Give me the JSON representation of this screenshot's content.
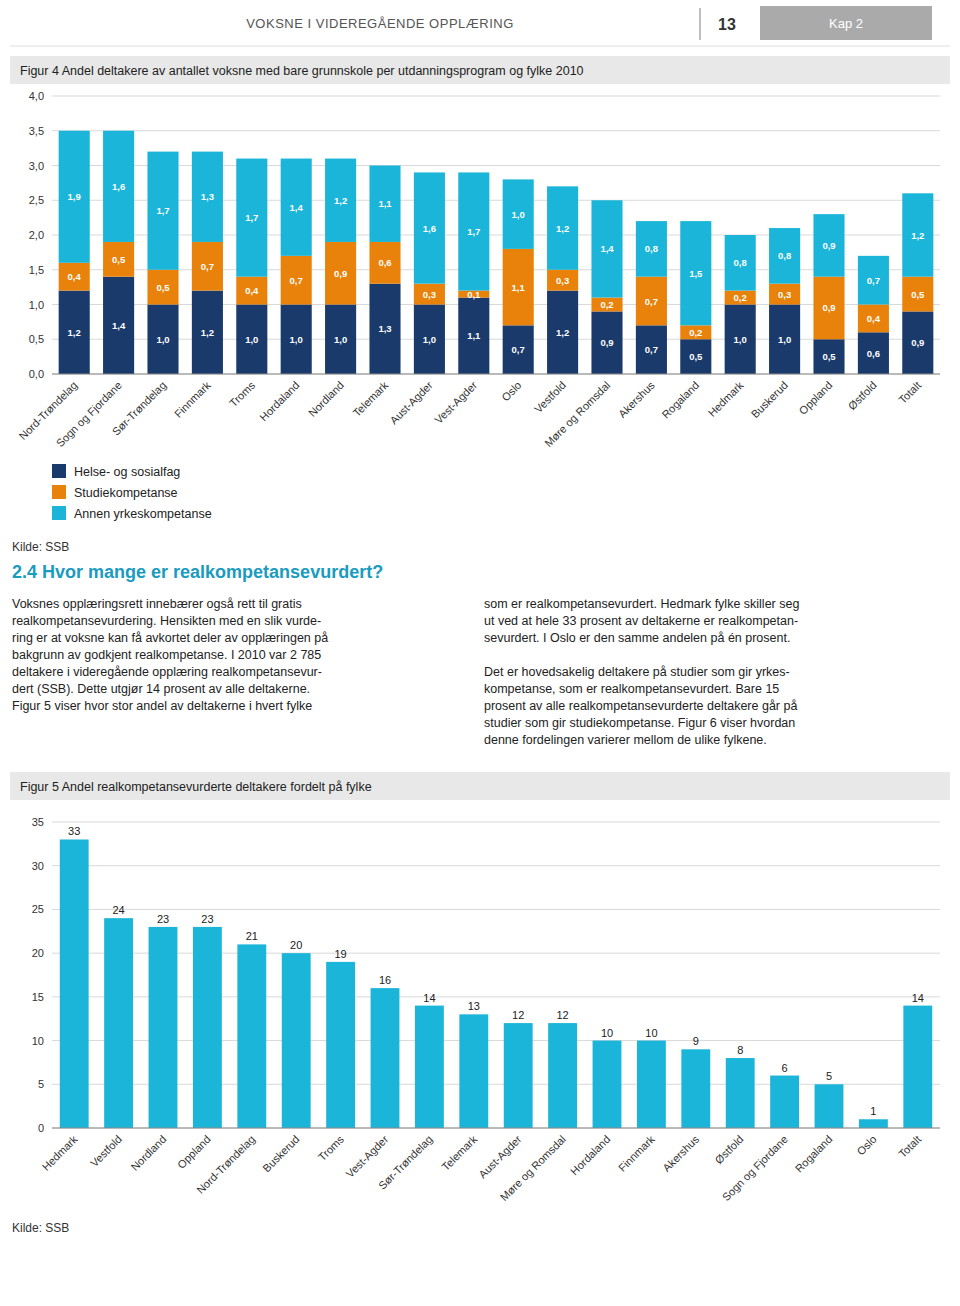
{
  "header": {
    "title": "VOKSNE I VIDEREGÅENDE OPPLÆRING",
    "page": "13",
    "chapter": "Kap 2"
  },
  "section_title": "2.4 Hvor mange er realkompetansevurdert?",
  "body_text": [
    "Voksnes opplæringsrett innebærer også rett til gratis\nrealkompetansevurdering. Hensikten med en slik vurde-\nring er at voksne kan få avkortet deler av opplæringen på\nbakgrunn av godkjent realkompetanse. I 2010 var 2 785\ndeltakere i videregående opplæring realkompetansevur-\ndert (SSB). Dette utgjør 14 prosent av alle deltakerne.\nFigur 5 viser hvor stor andel av deltakerne i hvert fylke",
    "som er realkompetansevurdert. Hedmark fylke skiller seg\nut ved at hele 33 prosent av deltakerne er realkompetan-\nsevurdert. I Oslo er den samme andelen på én prosent.\n\nDet er hovedsakelig deltakere på studier som gir yrkes-\nkompetanse, som er realkompetansevurdert. Bare 15\nprosent av alle realkompetansevurderte deltakere går på\nstudier som gir studiekompetanse. Figur 6 viser hvordan\ndenne fordelingen varierer mellom de ulike fylkene."
  ],
  "chart_data": [
    {
      "type": "bar",
      "stacked": true,
      "title": "Figur 4 Andel deltakere av antallet voksne med bare grunnskole per utdanningsprogram og fylke 2010",
      "categories": [
        "Nord-Trøndelag",
        "Sogn og Fjordane",
        "Sør-Trøndelag",
        "Finnmark",
        "Troms",
        "Hordaland",
        "Nordland",
        "Telemark",
        "Aust-Agder",
        "Vest-Agder",
        "Oslo",
        "Vestfold",
        "Møre og Romsdal",
        "Akershus",
        "Rogaland",
        "Hedmark",
        "Buskerud",
        "Oppland",
        "Østfold",
        "Totalt"
      ],
      "series": [
        {
          "name": "Helse- og sosialfag",
          "color": "#1a3a6b",
          "values": [
            1.2,
            1.4,
            1.0,
            1.2,
            1.0,
            1.0,
            1.0,
            1.3,
            1.0,
            1.1,
            0.7,
            1.2,
            0.9,
            0.7,
            0.5,
            1.0,
            1.0,
            0.5,
            0.6,
            0.9
          ],
          "value_labels": [
            "1,2",
            "1,4",
            "1,0",
            "1,2",
            "1,0",
            "1,0",
            "1,0",
            "1,3",
            "1,0",
            "1,1",
            "0,7",
            "1,2",
            "0,9",
            "0,7",
            "0,5",
            "1,0",
            "1,0",
            "0,5",
            "0,6",
            "0,9"
          ]
        },
        {
          "name": "Studiekompetanse",
          "color": "#e8820a",
          "values": [
            0.4,
            0.5,
            0.5,
            0.7,
            0.4,
            0.7,
            0.9,
            0.6,
            0.3,
            0.1,
            1.1,
            0.3,
            0.2,
            0.7,
            0.2,
            0.2,
            0.3,
            0.9,
            0.4,
            0.5
          ],
          "value_labels": [
            "0,4",
            "0,5",
            "0,5",
            "0,7",
            "0,4",
            "0,7",
            "0,9",
            "0,6",
            "0,3",
            "0,1",
            "1,1",
            "0,3",
            "0,2",
            "0,7",
            "0,2",
            "0,2",
            "0,3",
            "0,9",
            "0,4",
            "0,5"
          ]
        },
        {
          "name": "Annen yrkeskompetanse",
          "color": "#1ab5d8",
          "values": [
            1.9,
            1.6,
            1.7,
            1.3,
            1.7,
            1.4,
            1.2,
            1.1,
            1.6,
            1.7,
            1.0,
            1.2,
            1.4,
            0.8,
            1.5,
            0.8,
            0.8,
            0.9,
            0.7,
            1.2
          ],
          "value_labels": [
            "1,9",
            "1,6",
            "1,7",
            "1,3",
            "1,7",
            "1,4",
            "1,2",
            "1,1",
            "1,6",
            "1,7",
            "1,0",
            "1,2",
            "1,4",
            "0,8",
            "1,5",
            "0,8",
            "0,8",
            "0,9",
            "0,7",
            "1,2"
          ]
        }
      ],
      "ylim": [
        0,
        4.0
      ],
      "yticks": [
        {
          "value": 0.0,
          "label": "0,0"
        },
        {
          "value": 0.5,
          "label": "0,5"
        },
        {
          "value": 1.0,
          "label": "1,0"
        },
        {
          "value": 1.5,
          "label": "1,5"
        },
        {
          "value": 2.0,
          "label": "2,0"
        },
        {
          "value": 2.5,
          "label": "2,5"
        },
        {
          "value": 3.0,
          "label": "3,0"
        },
        {
          "value": 3.5,
          "label": "3,5"
        },
        {
          "value": 4.0,
          "label": "4,0"
        }
      ],
      "grid": true,
      "data_labels": true,
      "legend": "bottom",
      "annotations": [
        "Kilde: SSB"
      ]
    },
    {
      "type": "bar",
      "title": "Figur 5 Andel realkompetansevurderte deltakere fordelt på fylke",
      "categories": [
        "Hedmark",
        "Vestfold",
        "Nordland",
        "Oppland",
        "Nord-Trøndelag",
        "Buskerud",
        "Troms",
        "Vest-Agder",
        "Sør-Trøndelag",
        "Telemark",
        "Aust-Agder",
        "Møre og Romsdal",
        "Hordaland",
        "Finnmark",
        "Akershus",
        "Østfold",
        "Sogn og Fjordane",
        "Rogaland",
        "Oslo",
        "Totalt"
      ],
      "values": [
        33,
        24,
        23,
        23,
        21,
        20,
        19,
        16,
        14,
        13,
        12,
        12,
        10,
        10,
        9,
        8,
        6,
        5,
        1,
        14
      ],
      "color": "#1ab5d8",
      "ylim": [
        0,
        35
      ],
      "yticks": [
        0,
        5,
        10,
        15,
        20,
        25,
        30,
        35
      ],
      "grid": true,
      "data_labels": true,
      "annotations": [
        "Kilde: SSB"
      ]
    }
  ]
}
